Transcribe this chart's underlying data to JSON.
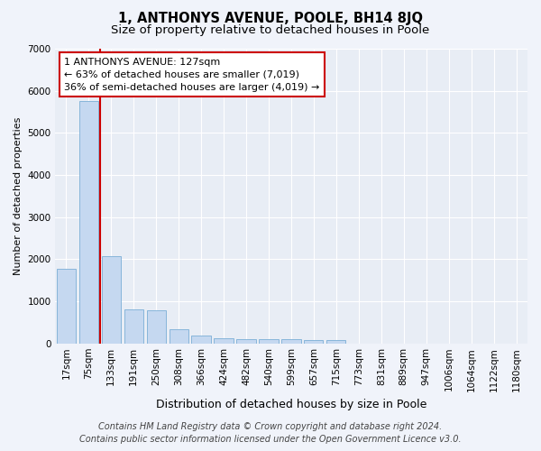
{
  "title": "1, ANTHONYS AVENUE, POOLE, BH14 8JQ",
  "subtitle": "Size of property relative to detached houses in Poole",
  "xlabel": "Distribution of detached houses by size in Poole",
  "ylabel": "Number of detached properties",
  "categories": [
    "17sqm",
    "75sqm",
    "133sqm",
    "191sqm",
    "250sqm",
    "308sqm",
    "366sqm",
    "424sqm",
    "482sqm",
    "540sqm",
    "599sqm",
    "657sqm",
    "715sqm",
    "773sqm",
    "831sqm",
    "889sqm",
    "947sqm",
    "1006sqm",
    "1064sqm",
    "1122sqm",
    "1180sqm"
  ],
  "values": [
    1780,
    5750,
    2080,
    800,
    790,
    340,
    195,
    115,
    105,
    95,
    95,
    90,
    90,
    0,
    0,
    0,
    0,
    0,
    0,
    0,
    0
  ],
  "bar_color": "#c5d8f0",
  "bar_edge_color": "#7aaed6",
  "property_line_color": "#cc0000",
  "property_line_x": 1.5,
  "annotation_text": "1 ANTHONYS AVENUE: 127sqm\n← 63% of detached houses are smaller (7,019)\n36% of semi-detached houses are larger (4,019) →",
  "annotation_box_color": "#ffffff",
  "annotation_box_edge_color": "#cc0000",
  "ylim": [
    0,
    7000
  ],
  "yticks": [
    0,
    1000,
    2000,
    3000,
    4000,
    5000,
    6000,
    7000
  ],
  "footer_line1": "Contains HM Land Registry data © Crown copyright and database right 2024.",
  "footer_line2": "Contains public sector information licensed under the Open Government Licence v3.0.",
  "bg_color": "#f0f3fa",
  "plot_bg_color": "#e8edf5",
  "grid_color": "#ffffff",
  "title_fontsize": 10.5,
  "subtitle_fontsize": 9.5,
  "ylabel_fontsize": 8,
  "xlabel_fontsize": 9,
  "tick_fontsize": 7.5,
  "footer_fontsize": 7,
  "ann_fontsize": 8
}
